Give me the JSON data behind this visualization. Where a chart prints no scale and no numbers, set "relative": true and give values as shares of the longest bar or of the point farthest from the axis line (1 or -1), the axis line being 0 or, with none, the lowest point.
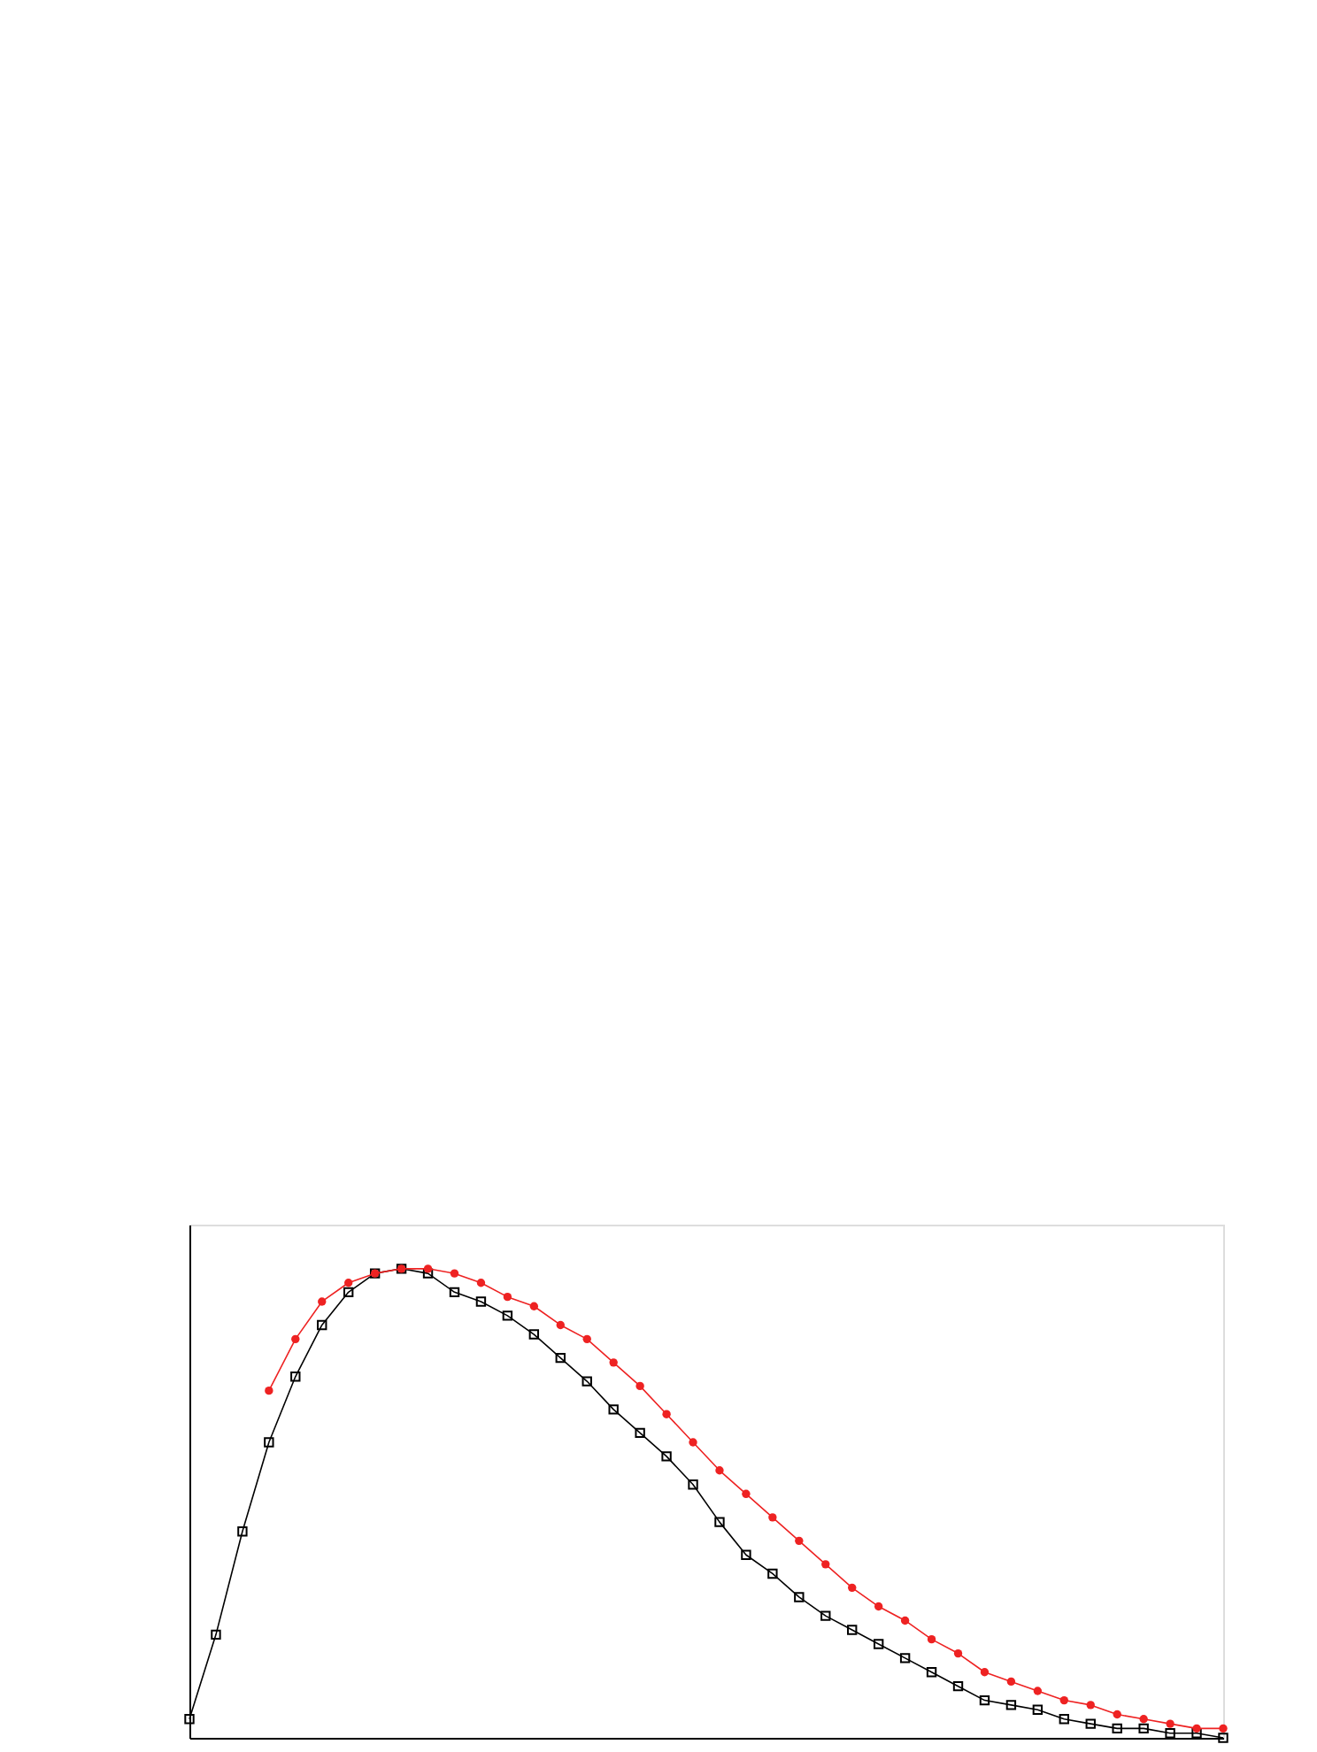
{
  "chart_data": {
    "type": "line",
    "relative": true,
    "categories": [
      null,
      null,
      null,
      null,
      null,
      null,
      null,
      null,
      null,
      null,
      null,
      null,
      null,
      null,
      null,
      null,
      null,
      null,
      null,
      null,
      null,
      null,
      null,
      null,
      null,
      null,
      null,
      null,
      null,
      null,
      null,
      null,
      null,
      null,
      null,
      null,
      null,
      null,
      null,
      null
    ],
    "series": [
      {
        "color": "#000000",
        "marker": "square",
        "values": [
          0.04,
          0.22,
          0.44,
          0.63,
          0.77,
          0.88,
          0.95,
          0.99,
          1.0,
          0.99,
          0.95,
          0.93,
          0.9,
          0.86,
          0.81,
          0.76,
          0.7,
          0.65,
          0.6,
          0.54,
          0.46,
          0.39,
          0.35,
          0.3,
          0.26,
          0.23,
          0.2,
          0.17,
          0.14,
          0.11,
          0.08,
          0.07,
          0.06,
          0.04,
          0.03,
          0.02,
          0.02,
          0.01,
          0.01,
          0.0
        ]
      },
      {
        "color": "#ee2222",
        "marker": "circle",
        "values": [
          null,
          null,
          null,
          0.74,
          0.85,
          0.93,
          0.97,
          0.99,
          1.0,
          1.0,
          0.99,
          0.97,
          0.94,
          0.92,
          0.88,
          0.85,
          0.8,
          0.75,
          0.69,
          0.63,
          0.57,
          0.52,
          0.47,
          0.42,
          0.37,
          0.32,
          0.28,
          0.25,
          0.21,
          0.18,
          0.14,
          0.12,
          0.1,
          0.08,
          0.07,
          0.05,
          0.04,
          0.03,
          0.02,
          0.02
        ]
      }
    ]
  }
}
